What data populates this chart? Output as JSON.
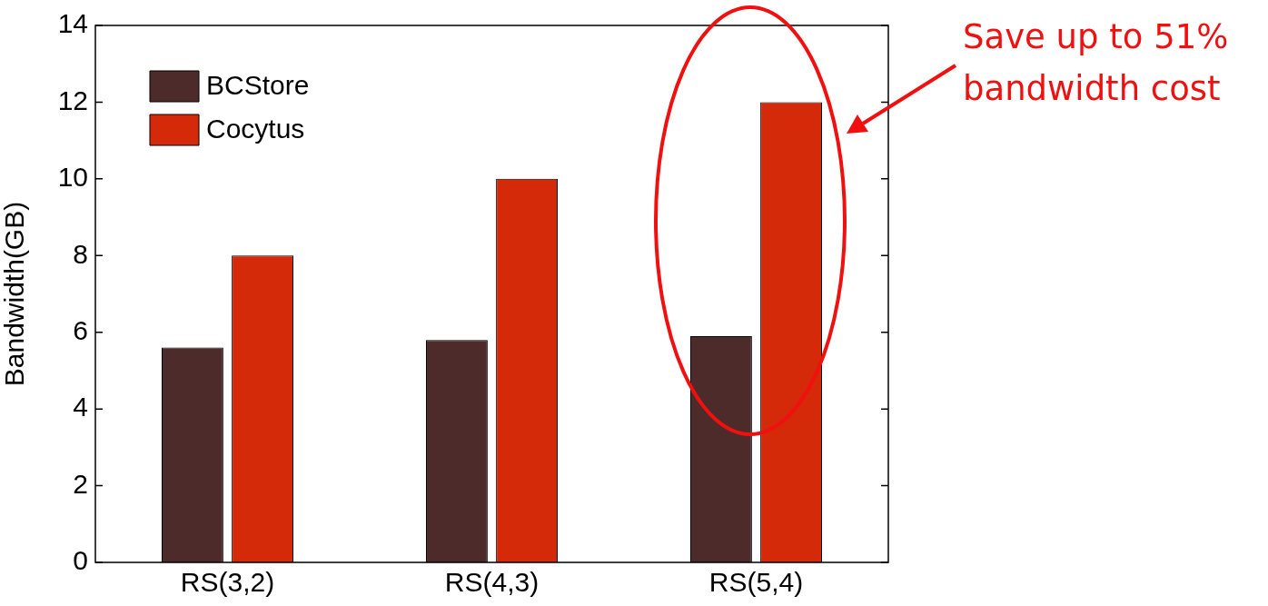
{
  "chart_data": {
    "type": "bar",
    "ylabel": "Bandwidth(GB)",
    "categories": [
      "RS(3,2)",
      "RS(4,3)",
      "RS(5,4)"
    ],
    "series": [
      {
        "name": "BCStore",
        "color": "#4e2b2b",
        "values": [
          5.6,
          5.8,
          5.9
        ]
      },
      {
        "name": "Cocytus",
        "color": "#d42a0a",
        "values": [
          8.0,
          10.0,
          12.0
        ]
      }
    ],
    "ylim": [
      0,
      14
    ],
    "yticks": [
      0,
      2,
      4,
      6,
      8,
      10,
      12,
      14
    ],
    "grid": false,
    "legend": "top left",
    "annotations": [
      "Save up to 51% bandwidth cost"
    ]
  }
}
